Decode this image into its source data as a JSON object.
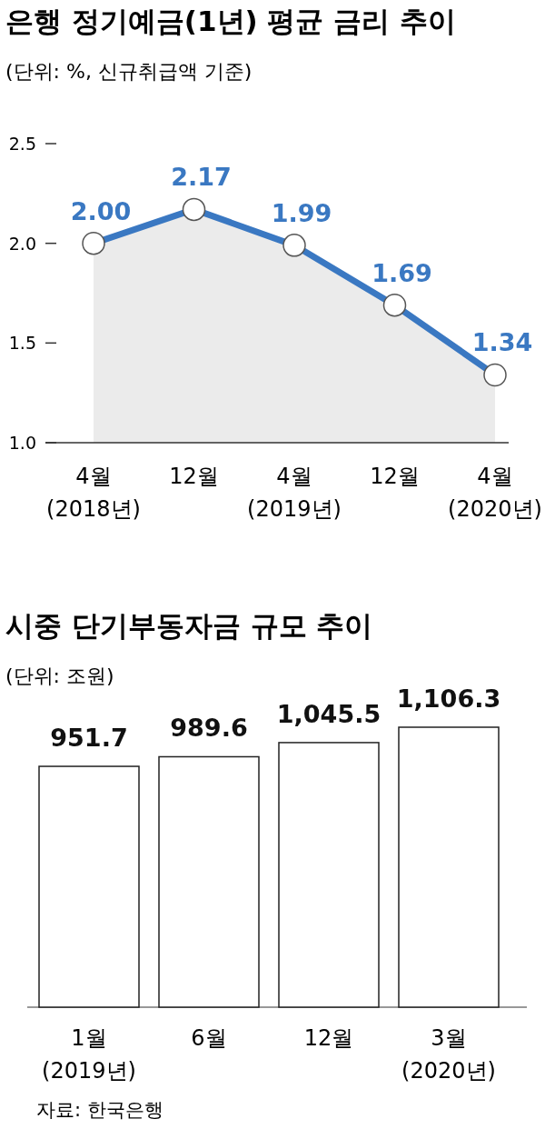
{
  "chart_data": [
    {
      "type": "area",
      "title": "은행 정기예금(1년) 평균 금리 추이",
      "subtitle": "(단위: %, 신규취급액 기준)",
      "categories": [
        "4월\n(2018년)",
        "12월",
        "4월\n(2019년)",
        "12월",
        "4월\n(2020년)"
      ],
      "series": [
        {
          "color": "#3a78c2",
          "values": [
            2.0,
            2.17,
            1.99,
            1.69,
            1.34
          ],
          "value_labels": [
            "2.00",
            "2.17",
            "1.99",
            "1.69",
            "1.34"
          ]
        }
      ],
      "ylim": [
        1.0,
        2.5
      ],
      "yticks": [
        {
          "value": 1,
          "label": "1.0"
        },
        {
          "value": 1.5,
          "label": "1.5"
        },
        {
          "value": 2,
          "label": "2.0"
        },
        {
          "value": 2.5,
          "label": "2.5"
        }
      ],
      "marker": "circle",
      "grid": false
    },
    {
      "type": "bar",
      "title": "시중 단기부동자금 규모 추이",
      "subtitle": "(단위: 조원)",
      "categories": [
        "1월\n(2019년)",
        "6월",
        "12월",
        "3월\n(2020년)"
      ],
      "series": [
        {
          "color": "#ffffff",
          "values": [
            951.7,
            989.6,
            1045.5,
            1106.3
          ],
          "value_labels": [
            "951.7",
            "989.6",
            "1,045.5",
            "1,106.3"
          ]
        }
      ],
      "tick_labels": "x",
      "grid": false,
      "annotations": [
        "자료: 한국은행"
      ]
    }
  ]
}
